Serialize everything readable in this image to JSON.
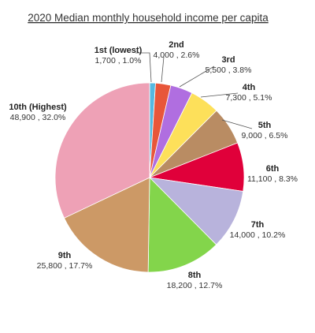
{
  "chart_data": {
    "type": "pie",
    "title": "2020 Median monthly household income per capita",
    "slices": [
      {
        "name": "1st (lowest)",
        "value": 1700,
        "percent": 1.0,
        "value_text": "1,700 , 1.0%",
        "color": "#55b8e0"
      },
      {
        "name": "2nd",
        "value": 4000,
        "percent": 2.6,
        "value_text": "4,000 , 2.6%",
        "color": "#e8563a"
      },
      {
        "name": "3rd",
        "value": 5500,
        "percent": 3.8,
        "value_text": "5,500 , 3.8%",
        "color": "#b06ee0"
      },
      {
        "name": "4th",
        "value": 7300,
        "percent": 5.1,
        "value_text": "7,300 , 5.1%",
        "color": "#fde05a"
      },
      {
        "name": "5th",
        "value": 9000,
        "percent": 6.5,
        "value_text": "9,000 , 6.5%",
        "color": "#b98c63"
      },
      {
        "name": "6th",
        "value": 11100,
        "percent": 8.3,
        "value_text": "11,100 , 8.3%",
        "color": "#e0003a"
      },
      {
        "name": "7th",
        "value": 14000,
        "percent": 10.2,
        "value_text": "14,000 , 10.2%",
        "color": "#b8b3dc"
      },
      {
        "name": "8th",
        "value": 18200,
        "percent": 12.7,
        "value_text": "18,200 , 12.7%",
        "color": "#83d54b"
      },
      {
        "name": "9th",
        "value": 25800,
        "percent": 17.7,
        "value_text": "25,800 , 17.7%",
        "color": "#cc9966"
      },
      {
        "name": "10th (Highest)",
        "value": 48900,
        "percent": 32.0,
        "value_text": "48,900 , 32.0%",
        "color": "#eea1b6"
      }
    ]
  }
}
